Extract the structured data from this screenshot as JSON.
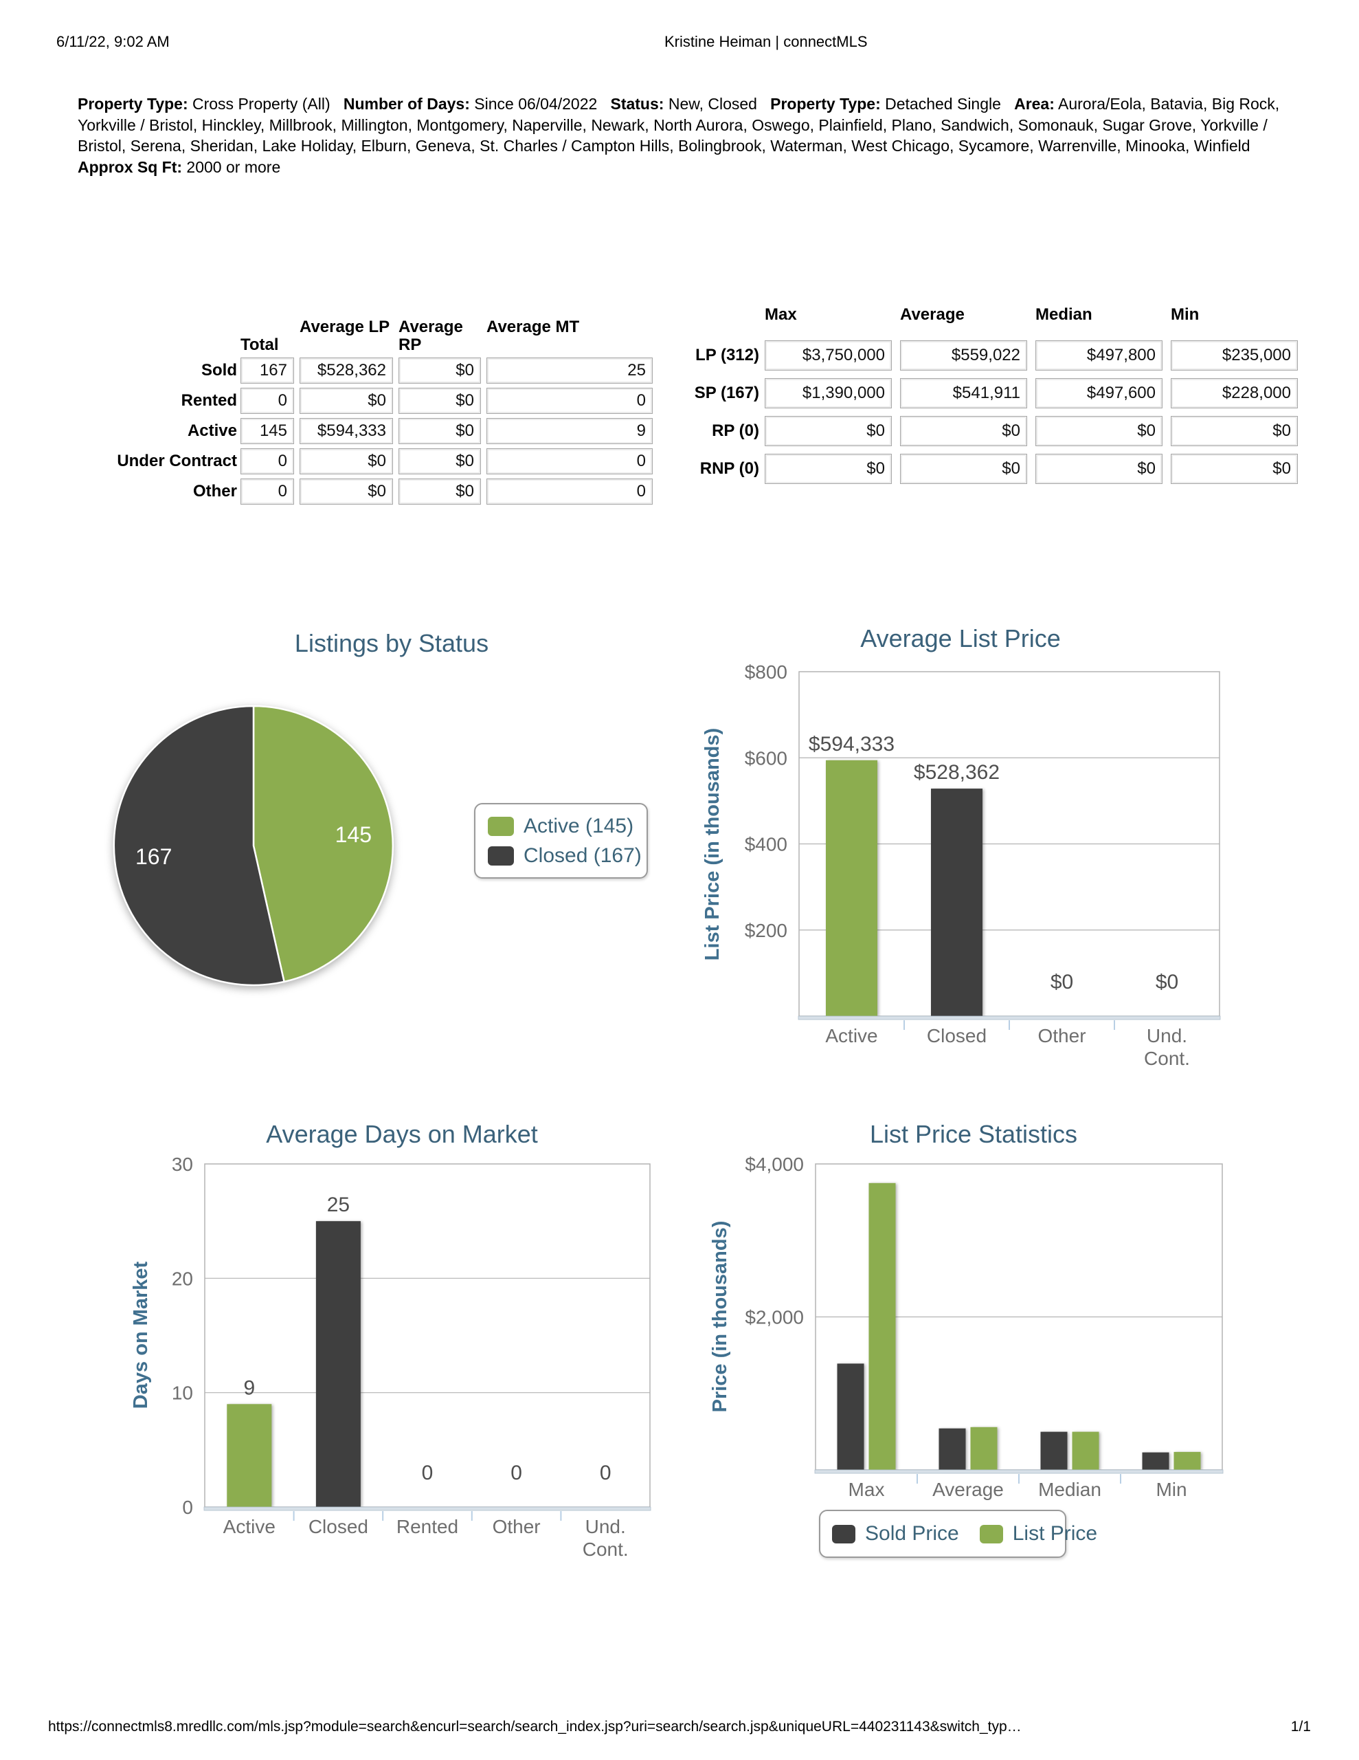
{
  "print_header": {
    "datetime": "6/11/22, 9:02 AM",
    "title": "Kristine Heiman | connectMLS"
  },
  "criteria": {
    "segments": [
      {
        "label": "Property Type:",
        "value": "Cross Property (All)"
      },
      {
        "label": "Number of Days:",
        "value": "Since 06/04/2022"
      },
      {
        "label": "Status:",
        "value": "New, Closed"
      },
      {
        "label": "Property Type:",
        "value": "Detached Single"
      },
      {
        "label": "Area:",
        "value": "Aurora/Eola, Batavia, Big Rock, Yorkville / Bristol, Hinckley, Millbrook, Millington, Montgomery, Naperville, Newark, North Aurora, Oswego, Plainfield, Plano, Sandwich, Somonauk, Sugar Grove, Yorkville / Bristol, Serena, Sheridan, Lake Holiday, Elburn, Geneva, St. Charles / Campton Hills, Bolingbrook, Waterman, West Chicago, Sycamore, Warrenville, Minooka, Winfield"
      },
      {
        "label": "Approx Sq Ft:",
        "value": "2000 or more"
      }
    ]
  },
  "status_table": {
    "columns": [
      "Total",
      "Average LP",
      "Average RP",
      "Average MT"
    ],
    "rows": [
      {
        "label": "Sold",
        "values": [
          "167",
          "$528,362",
          "$0",
          "25"
        ]
      },
      {
        "label": "Rented",
        "values": [
          "0",
          "$0",
          "$0",
          "0"
        ]
      },
      {
        "label": "Active",
        "values": [
          "145",
          "$594,333",
          "$0",
          "9"
        ]
      },
      {
        "label": "Under Contract",
        "values": [
          "0",
          "$0",
          "$0",
          "0"
        ]
      },
      {
        "label": "Other",
        "values": [
          "0",
          "$0",
          "$0",
          "0"
        ]
      }
    ]
  },
  "price_table": {
    "columns": [
      "Max",
      "Average",
      "Median",
      "Min"
    ],
    "rows": [
      {
        "label": "LP (312)",
        "values": [
          "$3,750,000",
          "$559,022",
          "$497,800",
          "$235,000"
        ]
      },
      {
        "label": "SP (167)",
        "values": [
          "$1,390,000",
          "$541,911",
          "$497,600",
          "$228,000"
        ]
      },
      {
        "label": "RP (0)",
        "values": [
          "$0",
          "$0",
          "$0",
          "$0"
        ]
      },
      {
        "label": "RNP (0)",
        "values": [
          "$0",
          "$0",
          "$0",
          "$0"
        ]
      }
    ]
  },
  "colors": {
    "green": "#8CAD4F",
    "dark_gray": "#3F3F3F",
    "pie_dark": "#404040",
    "title_blue": "#3A617A",
    "axis_title_blue": "#40708F",
    "tick_gray": "#6E6E6E",
    "value_gray": "#4F4F4F",
    "grid_gray": "#B3B3B3",
    "axis_band": "#D7E0E8",
    "axis_tick_blue": "#B8CFE4"
  },
  "chart_data": [
    {
      "type": "pie",
      "title": "Listings by Status",
      "labels": [
        "Active",
        "Closed"
      ],
      "values": [
        145,
        167
      ],
      "slice_labels": [
        "145",
        "167"
      ],
      "colors": [
        "#8CAD4F",
        "#404040"
      ],
      "legend": [
        {
          "label": "Active (145)",
          "color": "#8CAD4F"
        },
        {
          "label": "Closed (167)",
          "color": "#404040"
        }
      ],
      "legend_position": "right"
    },
    {
      "type": "bar",
      "title": "Average List Price",
      "ylabel": "List Price (in thousands)",
      "categories": [
        "Active",
        "Closed",
        "Other",
        "Und.\nCont."
      ],
      "values": [
        594.333,
        528.362,
        0,
        0
      ],
      "value_labels": [
        "$594,333",
        "$528,362",
        "$0",
        "$0"
      ],
      "bar_colors": [
        "#8CAD4F",
        "#3F3F3F",
        null,
        null
      ],
      "ylim": [
        0,
        800
      ],
      "yticks": [
        {
          "v": 200,
          "label": "$200"
        },
        {
          "v": 400,
          "label": "$400"
        },
        {
          "v": 600,
          "label": "$600"
        },
        {
          "v": 800,
          "label": "$800"
        }
      ],
      "grid": true,
      "legend_position": "none"
    },
    {
      "type": "bar",
      "title": "Average Days on Market",
      "ylabel": "Days on Market",
      "categories": [
        "Active",
        "Closed",
        "Rented",
        "Other",
        "Und.\nCont."
      ],
      "values": [
        9,
        25,
        0,
        0,
        0
      ],
      "value_labels": [
        "9",
        "25",
        "0",
        "0",
        "0"
      ],
      "bar_colors": [
        "#8CAD4F",
        "#3F3F3F",
        null,
        null,
        null
      ],
      "ylim": [
        0,
        30
      ],
      "yticks": [
        {
          "v": 0,
          "label": "0"
        },
        {
          "v": 10,
          "label": "10"
        },
        {
          "v": 20,
          "label": "20"
        },
        {
          "v": 30,
          "label": "30"
        }
      ],
      "grid": true,
      "legend_position": "none"
    },
    {
      "type": "bar",
      "title": "List Price Statistics",
      "ylabel": "Price (in thousands)",
      "categories": [
        "Max",
        "Average",
        "Median",
        "Min"
      ],
      "series": [
        {
          "name": "Sold Price",
          "color": "#3F3F3F",
          "values": [
            1390,
            541.911,
            497.6,
            228
          ]
        },
        {
          "name": "List Price",
          "color": "#8CAD4F",
          "values": [
            3750,
            559.022,
            497.8,
            235
          ]
        }
      ],
      "ylim": [
        0,
        4000
      ],
      "yticks": [
        {
          "v": 2000,
          "label": "$2,000"
        },
        {
          "v": 4000,
          "label": "$4,000"
        }
      ],
      "grid": true,
      "legend_position": "bottom"
    }
  ],
  "print_footer": {
    "url": "https://connectmls8.mredllc.com/mls.jsp?module=search&encurl=search/search_index.jsp?uri=search/search.jsp&uniqueURL=440231143&switch_typ…",
    "page": "1/1"
  }
}
